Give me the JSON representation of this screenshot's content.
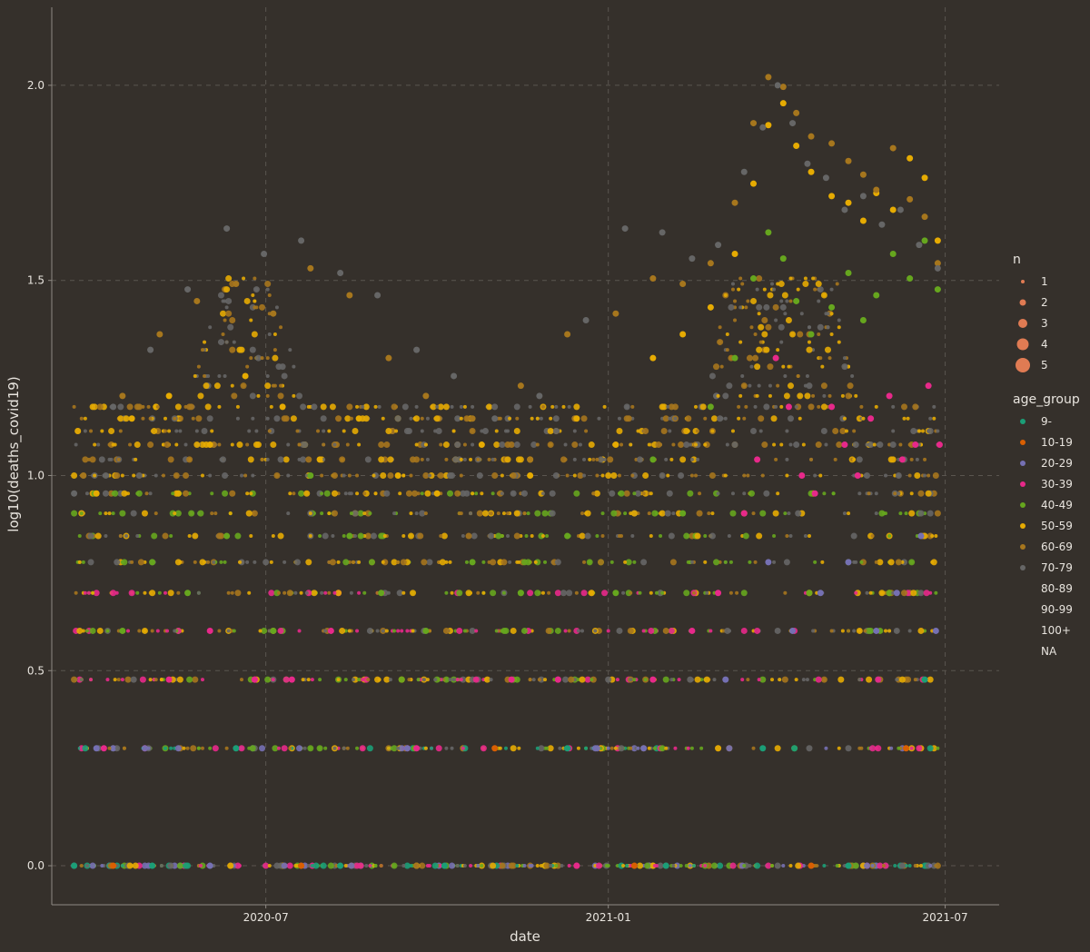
{
  "chart_data": {
    "type": "scatter",
    "xlabel": "date",
    "ylabel": "log10(deaths_covid19)",
    "x_range": [
      "2020-03-08",
      "2021-07-30"
    ],
    "ylim": [
      -0.1,
      2.2
    ],
    "x_ticks": [
      {
        "date": "2020-07-01",
        "label": "2020-07"
      },
      {
        "date": "2021-01-01",
        "label": "2021-01"
      },
      {
        "date": "2021-07-01",
        "label": "2021-07"
      }
    ],
    "y_ticks": [
      {
        "value": 0.0,
        "label": "0.0"
      },
      {
        "value": 0.5,
        "label": "0.5"
      },
      {
        "value": 1.0,
        "label": "1.0"
      },
      {
        "value": 1.5,
        "label": "1.5"
      },
      {
        "value": 2.0,
        "label": "2.0"
      }
    ],
    "grid": true,
    "background_color": "#35302b",
    "axis_color": "#8f8a84",
    "grid_color": "#5a554f",
    "size_legend": {
      "title": "n",
      "color": "#e07b53",
      "entries": [
        {
          "label": "1",
          "n": 1
        },
        {
          "label": "2",
          "n": 2
        },
        {
          "label": "3",
          "n": 3
        },
        {
          "label": "4",
          "n": 4
        },
        {
          "label": "5",
          "n": 5
        }
      ]
    },
    "color_legend": {
      "title": "age_group",
      "placement": "right",
      "entries": [
        {
          "label": "9-",
          "color": "#1b9e77"
        },
        {
          "label": "10-19",
          "color": "#d95f02"
        },
        {
          "label": "20-29",
          "color": "#7570b3"
        },
        {
          "label": "30-39",
          "color": "#e7298a"
        },
        {
          "label": "40-49",
          "color": "#66a61e"
        },
        {
          "label": "50-59",
          "color": "#e6ab02"
        },
        {
          "label": "60-69",
          "color": "#a6761d"
        },
        {
          "label": "70-79",
          "color": "#666666"
        },
        {
          "label": "80-89",
          "color": null
        },
        {
          "label": "90-99",
          "color": null
        },
        {
          "label": "100+",
          "color": null
        },
        {
          "label": "NA",
          "color": null
        }
      ]
    },
    "series": [
      {
        "name": "9-",
        "color": "#1b9e77",
        "points": [
          [
            "2020-03-20",
            0
          ],
          [
            "2020-05-01",
            0
          ],
          [
            "2020-06-15",
            0.301
          ],
          [
            "2020-08-10",
            0
          ],
          [
            "2020-10-05",
            0
          ],
          [
            "2020-12-10",
            0.301
          ],
          [
            "2021-02-01",
            0
          ],
          [
            "2021-03-25",
            0.301
          ],
          [
            "2021-05-10",
            0
          ],
          [
            "2021-06-20",
            0.477
          ]
        ]
      },
      {
        "name": "10-19",
        "color": "#d95f02",
        "points": [
          [
            "2020-04-10",
            0
          ],
          [
            "2020-07-20",
            0
          ],
          [
            "2020-11-01",
            0.301
          ],
          [
            "2021-01-15",
            0
          ],
          [
            "2021-04-20",
            0
          ],
          [
            "2021-06-10",
            0.301
          ]
        ]
      },
      {
        "name": "20-29",
        "color": "#7570b3",
        "points": [
          [
            "2020-04-01",
            0.301
          ],
          [
            "2020-06-01",
            0
          ],
          [
            "2020-09-15",
            0.301
          ],
          [
            "2021-01-20",
            0.301
          ],
          [
            "2021-03-05",
            0.477
          ],
          [
            "2021-03-28",
            0.778
          ],
          [
            "2021-04-10",
            0.602
          ],
          [
            "2021-04-25",
            0.699
          ],
          [
            "2021-05-10",
            0.778
          ],
          [
            "2021-05-25",
            0.602
          ],
          [
            "2021-06-05",
            0.699
          ],
          [
            "2021-06-18",
            0.845
          ],
          [
            "2021-06-26",
            0.602
          ]
        ]
      },
      {
        "name": "30-39",
        "color": "#e7298a",
        "points": [
          [
            "2020-04-05",
            0.301
          ],
          [
            "2020-05-10",
            0.477
          ],
          [
            "2020-06-01",
            0.602
          ],
          [
            "2020-06-25",
            0.477
          ],
          [
            "2020-07-15",
            0.477
          ],
          [
            "2020-08-05",
            0.602
          ],
          [
            "2020-09-20",
            0.301
          ],
          [
            "2020-11-10",
            0.477
          ],
          [
            "2021-01-25",
            0.477
          ],
          [
            "2021-02-15",
            0.602
          ],
          [
            "2021-03-01",
            0.699
          ],
          [
            "2021-03-15",
            0.903
          ],
          [
            "2021-03-22",
            1.041
          ],
          [
            "2021-04-01",
            1.301
          ],
          [
            "2021-04-08",
            1.176
          ],
          [
            "2021-04-15",
            1.0
          ],
          [
            "2021-04-22",
            0.954
          ],
          [
            "2021-05-01",
            1.176
          ],
          [
            "2021-05-08",
            1.079
          ],
          [
            "2021-05-15",
            1.0
          ],
          [
            "2021-05-22",
            1.146
          ],
          [
            "2021-06-01",
            1.204
          ],
          [
            "2021-06-08",
            1.041
          ],
          [
            "2021-06-15",
            1.079
          ],
          [
            "2021-06-22",
            1.23
          ],
          [
            "2021-06-28",
            1.079
          ]
        ]
      },
      {
        "name": "40-49",
        "color": "#66a61e",
        "points": [
          [
            "2020-04-15",
            0.602
          ],
          [
            "2020-05-01",
            0.778
          ],
          [
            "2020-05-20",
            0.699
          ],
          [
            "2020-06-10",
            0.845
          ],
          [
            "2020-07-05",
            0.602
          ],
          [
            "2020-07-25",
            1.0
          ],
          [
            "2020-08-15",
            0.845
          ],
          [
            "2020-09-01",
            0.699
          ],
          [
            "2020-09-25",
            0.602
          ],
          [
            "2020-10-20",
            0.778
          ],
          [
            "2020-11-15",
            0.699
          ],
          [
            "2020-12-10",
            0.845
          ],
          [
            "2021-01-05",
            0.699
          ],
          [
            "2021-01-25",
            1.041
          ],
          [
            "2021-02-10",
            0.903
          ],
          [
            "2021-02-25",
            1.176
          ],
          [
            "2021-03-10",
            1.301
          ],
          [
            "2021-03-20",
            1.505
          ],
          [
            "2021-03-28",
            1.623
          ],
          [
            "2021-04-05",
            1.556
          ],
          [
            "2021-04-12",
            1.447
          ],
          [
            "2021-04-20",
            1.362
          ],
          [
            "2021-05-01",
            1.431
          ],
          [
            "2021-05-10",
            1.519
          ],
          [
            "2021-05-18",
            1.398
          ],
          [
            "2021-05-25",
            1.462
          ],
          [
            "2021-06-03",
            1.568
          ],
          [
            "2021-06-12",
            1.505
          ],
          [
            "2021-06-20",
            1.602
          ],
          [
            "2021-06-27",
            1.477
          ]
        ]
      },
      {
        "name": "50-59",
        "color": "#e6ab02",
        "points": [
          [
            "2020-04-01",
            0.954
          ],
          [
            "2020-04-20",
            1.146
          ],
          [
            "2020-05-10",
            1.204
          ],
          [
            "2020-06-01",
            1.079
          ],
          [
            "2020-06-20",
            1.255
          ],
          [
            "2020-07-10",
            1.176
          ],
          [
            "2020-07-30",
            1.041
          ],
          [
            "2020-08-20",
            1.146
          ],
          [
            "2020-09-10",
            1.0
          ],
          [
            "2020-10-01",
            0.954
          ],
          [
            "2020-10-25",
            1.079
          ],
          [
            "2020-11-20",
            1.0
          ],
          [
            "2020-12-15",
            1.146
          ],
          [
            "2021-01-05",
            1.079
          ],
          [
            "2021-01-25",
            1.301
          ],
          [
            "2021-02-10",
            1.362
          ],
          [
            "2021-02-25",
            1.431
          ],
          [
            "2021-03-10",
            1.568
          ],
          [
            "2021-03-20",
            1.748
          ],
          [
            "2021-03-28",
            1.898
          ],
          [
            "2021-04-05",
            1.954
          ],
          [
            "2021-04-12",
            1.845
          ],
          [
            "2021-04-20",
            1.778
          ],
          [
            "2021-05-01",
            1.716
          ],
          [
            "2021-05-10",
            1.699
          ],
          [
            "2021-05-18",
            1.653
          ],
          [
            "2021-05-25",
            1.724
          ],
          [
            "2021-06-03",
            1.681
          ],
          [
            "2021-06-12",
            1.813
          ],
          [
            "2021-06-20",
            1.763
          ],
          [
            "2021-06-27",
            1.602
          ]
        ]
      },
      {
        "name": "60-69",
        "color": "#a6761d",
        "points": [
          [
            "2020-03-25",
            1.0
          ],
          [
            "2020-04-15",
            1.204
          ],
          [
            "2020-05-05",
            1.362
          ],
          [
            "2020-05-25",
            1.447
          ],
          [
            "2020-06-15",
            1.491
          ],
          [
            "2020-07-05",
            1.415
          ],
          [
            "2020-07-25",
            1.531
          ],
          [
            "2020-08-15",
            1.462
          ],
          [
            "2020-09-05",
            1.301
          ],
          [
            "2020-09-25",
            1.204
          ],
          [
            "2020-10-20",
            1.146
          ],
          [
            "2020-11-15",
            1.23
          ],
          [
            "2020-12-10",
            1.362
          ],
          [
            "2021-01-05",
            1.415
          ],
          [
            "2021-01-25",
            1.505
          ],
          [
            "2021-02-10",
            1.491
          ],
          [
            "2021-02-25",
            1.544
          ],
          [
            "2021-03-10",
            1.699
          ],
          [
            "2021-03-20",
            1.903
          ],
          [
            "2021-03-28",
            2.021
          ],
          [
            "2021-04-05",
            1.996
          ],
          [
            "2021-04-12",
            1.929
          ],
          [
            "2021-04-20",
            1.869
          ],
          [
            "2021-05-01",
            1.851
          ],
          [
            "2021-05-10",
            1.806
          ],
          [
            "2021-05-18",
            1.771
          ],
          [
            "2021-05-25",
            1.732
          ],
          [
            "2021-06-03",
            1.839
          ],
          [
            "2021-06-12",
            1.708
          ],
          [
            "2021-06-20",
            1.663
          ],
          [
            "2021-06-27",
            1.544
          ]
        ]
      },
      {
        "name": "70-79",
        "color": "#666666",
        "points": [
          [
            "2020-03-20",
            0.954
          ],
          [
            "2020-04-10",
            1.176
          ],
          [
            "2020-04-30",
            1.322
          ],
          [
            "2020-05-20",
            1.477
          ],
          [
            "2020-06-10",
            1.633
          ],
          [
            "2020-06-30",
            1.568
          ],
          [
            "2020-07-20",
            1.602
          ],
          [
            "2020-08-10",
            1.519
          ],
          [
            "2020-08-30",
            1.462
          ],
          [
            "2020-09-20",
            1.322
          ],
          [
            "2020-10-10",
            1.255
          ],
          [
            "2020-11-01",
            1.146
          ],
          [
            "2020-11-25",
            1.204
          ],
          [
            "2020-12-20",
            1.398
          ],
          [
            "2021-01-10",
            1.633
          ],
          [
            "2021-01-30",
            1.623
          ],
          [
            "2021-02-15",
            1.556
          ],
          [
            "2021-03-01",
            1.591
          ],
          [
            "2021-03-15",
            1.778
          ],
          [
            "2021-03-25",
            1.892
          ],
          [
            "2021-04-02",
            2.0
          ],
          [
            "2021-04-10",
            1.903
          ],
          [
            "2021-04-18",
            1.799
          ],
          [
            "2021-04-28",
            1.763
          ],
          [
            "2021-05-08",
            1.681
          ],
          [
            "2021-05-18",
            1.716
          ],
          [
            "2021-05-28",
            1.643
          ],
          [
            "2021-06-07",
            1.681
          ],
          [
            "2021-06-17",
            1.591
          ],
          [
            "2021-06-27",
            1.531
          ]
        ]
      }
    ]
  }
}
